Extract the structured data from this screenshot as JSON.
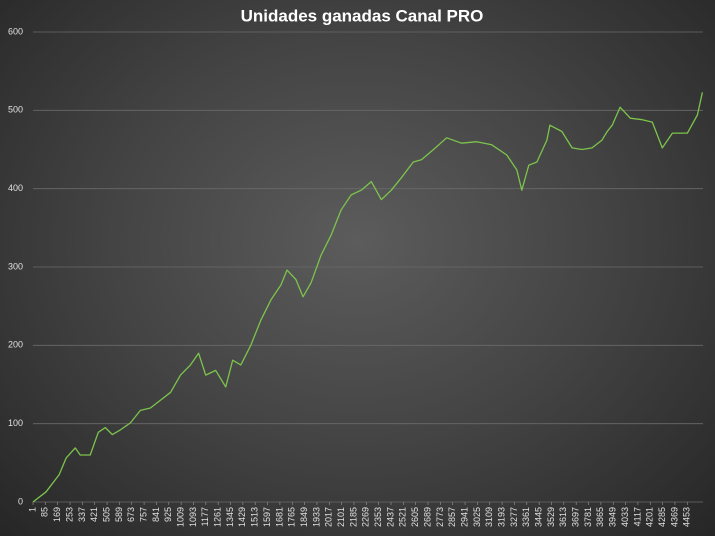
{
  "chart_data": {
    "type": "line",
    "title": "Unidades ganadas Canal PRO",
    "x": [
      1,
      90,
      179,
      226,
      288,
      322,
      390,
      445,
      493,
      541,
      595,
      664,
      732,
      800,
      868,
      937,
      1005,
      1073,
      1128,
      1176,
      1244,
      1312,
      1360,
      1415,
      1483,
      1551,
      1620,
      1688,
      1729,
      1790,
      1838,
      1893,
      1961,
      2030,
      2098,
      2166,
      2234,
      2303,
      2371,
      2439,
      2508,
      2589,
      2644,
      2726,
      2815,
      2917,
      3020,
      3122,
      3225,
      3293,
      3327,
      3375,
      3430,
      3498,
      3518,
      3600,
      3669,
      3737,
      3805,
      3873,
      3908,
      3942,
      3996,
      4065,
      4147,
      4215,
      4283,
      4352,
      4454,
      4522,
      4556
    ],
    "series": [
      {
        "color": "#7cc44c",
        "values": [
          0,
          13,
          35,
          56,
          69,
          60,
          60,
          89,
          95,
          86,
          92,
          101,
          117,
          120,
          130,
          140,
          162,
          175,
          190,
          162,
          168,
          147,
          181,
          175,
          200,
          232,
          258,
          277,
          296,
          284,
          262,
          280,
          315,
          341,
          373,
          392,
          398,
          409,
          386,
          398,
          414,
          434,
          437,
          450,
          465,
          458,
          460,
          456,
          443,
          424,
          398,
          430,
          434,
          462,
          481,
          473,
          452,
          450,
          452,
          462,
          473,
          481,
          504,
          490,
          488,
          485,
          452,
          471,
          471,
          494,
          523
        ]
      }
    ],
    "xlim": [
      1,
      4560
    ],
    "xticks": [
      1,
      85,
      169,
      253,
      337,
      421,
      505,
      589,
      673,
      757,
      841,
      925,
      1009,
      1093,
      1177,
      1261,
      1345,
      1429,
      1513,
      1597,
      1681,
      1765,
      1849,
      1933,
      2017,
      2101,
      2185,
      2269,
      2353,
      2437,
      2521,
      2605,
      2689,
      2773,
      2857,
      2941,
      3025,
      3109,
      3193,
      3277,
      3361,
      3445,
      3529,
      3613,
      3697,
      3781,
      3865,
      3949,
      4033,
      4117,
      4201,
      4285,
      4369,
      4453
    ],
    "ylim": [
      0,
      600
    ],
    "yticks": [
      0,
      100,
      200,
      300,
      400,
      500,
      600
    ],
    "grid": true
  }
}
